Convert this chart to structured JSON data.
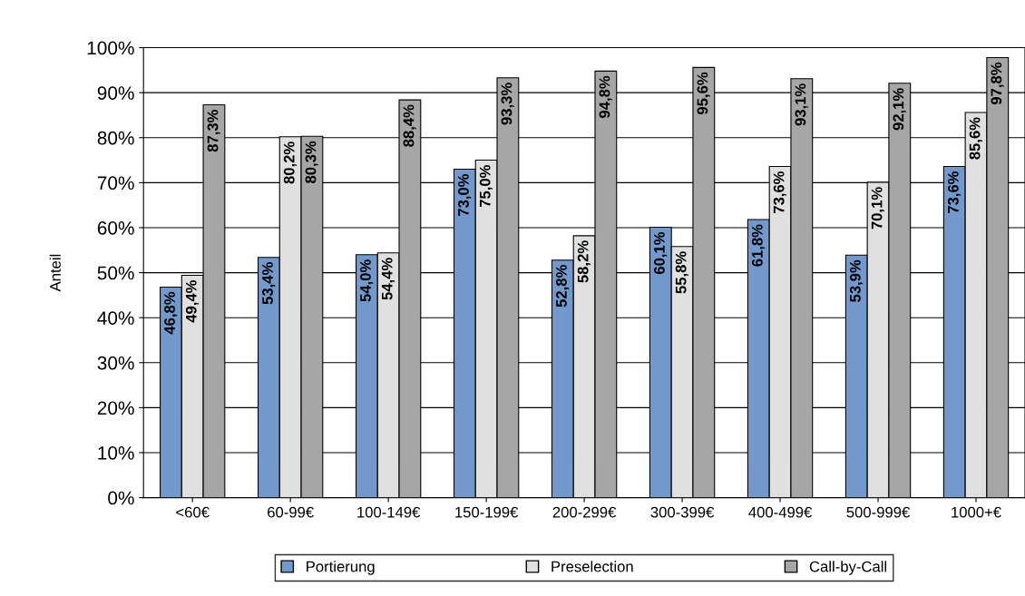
{
  "chart_data": {
    "type": "bar",
    "ylabel": "Anteil",
    "categories": [
      "<60€",
      "60-99€",
      "100-149€",
      "150-199€",
      "200-299€",
      "300-399€",
      "400-499€",
      "500-999€",
      "1000+€"
    ],
    "series": [
      {
        "name": "Portierung",
        "color": "#7399cc",
        "values": [
          46.8,
          53.4,
          54.0,
          73.0,
          52.8,
          60.1,
          61.8,
          53.9,
          73.6
        ],
        "value_labels": [
          "46,8%",
          "53,4%",
          "54,0%",
          "73,0%",
          "52,8%",
          "60,1%",
          "61,8%",
          "53,9%",
          "73,6%"
        ]
      },
      {
        "name": "Preselection",
        "color": "#e0e0e0",
        "values": [
          49.4,
          80.2,
          54.4,
          75.0,
          58.2,
          55.8,
          73.6,
          70.1,
          85.6
        ],
        "value_labels": [
          "49,4%",
          "80,2%",
          "54,4%",
          "75,0%",
          "58,2%",
          "55,8%",
          "73,6%",
          "70,1%",
          "85,6%"
        ]
      },
      {
        "name": "Call-by-Call",
        "color": "#a6a6a6",
        "values": [
          87.3,
          80.3,
          88.4,
          93.3,
          94.8,
          95.6,
          93.1,
          92.1,
          97.8
        ],
        "value_labels": [
          "87,3%",
          "80,3%",
          "88,4%",
          "93,3%",
          "94,8%",
          "95,6%",
          "93,1%",
          "92,1%",
          "97,8%"
        ]
      }
    ],
    "ylim": [
      0,
      100
    ],
    "yticks": [
      {
        "value": 0,
        "label": "0%"
      },
      {
        "value": 10,
        "label": "10%"
      },
      {
        "value": 20,
        "label": "20%"
      },
      {
        "value": 30,
        "label": "30%"
      },
      {
        "value": 40,
        "label": "40%"
      },
      {
        "value": 50,
        "label": "50%"
      },
      {
        "value": 60,
        "label": "60%"
      },
      {
        "value": 70,
        "label": "70%"
      },
      {
        "value": 80,
        "label": "80%"
      },
      {
        "value": 90,
        "label": "90%"
      },
      {
        "value": 100,
        "label": "100%"
      }
    ],
    "grid": "y",
    "legend": "bottom"
  }
}
